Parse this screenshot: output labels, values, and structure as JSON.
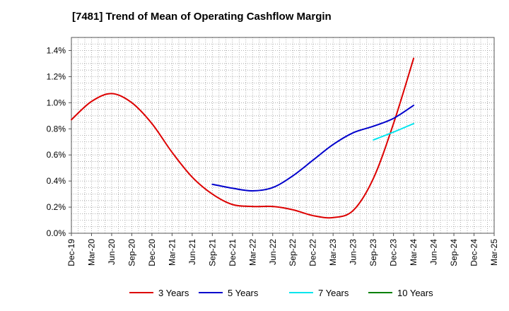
{
  "chart_data": {
    "type": "line",
    "title": "[7481]  Trend of Mean of Operating Cashflow Margin",
    "xlabel": "",
    "ylabel": "",
    "x_ticks": [
      "Dec-19",
      "Mar-20",
      "Jun-20",
      "Sep-20",
      "Dec-20",
      "Mar-21",
      "Jun-21",
      "Sep-21",
      "Dec-21",
      "Mar-22",
      "Jun-22",
      "Sep-22",
      "Dec-22",
      "Mar-23",
      "Jun-23",
      "Sep-23",
      "Dec-23",
      "Mar-24",
      "Jun-24",
      "Sep-24",
      "Dec-24",
      "Mar-25"
    ],
    "y_ticks": [
      "0.0%",
      "0.2%",
      "0.4%",
      "0.6%",
      "0.8%",
      "1.0%",
      "1.2%",
      "1.4%"
    ],
    "ylim": [
      0,
      1.5
    ],
    "grid": true,
    "legend_position": "bottom",
    "series": [
      {
        "name": "3 Years",
        "color": "#dd0000",
        "x": [
          "Dec-19",
          "Mar-20",
          "Jun-20",
          "Sep-20",
          "Dec-20",
          "Mar-21",
          "Jun-21",
          "Sep-21",
          "Dec-21",
          "Mar-22",
          "Jun-22",
          "Sep-22",
          "Dec-22",
          "Mar-23",
          "Jun-23",
          "Sep-23",
          "Dec-23",
          "Mar-24"
        ],
        "values": [
          0.87,
          1.01,
          1.07,
          1.0,
          0.84,
          0.62,
          0.43,
          0.3,
          0.22,
          0.205,
          0.205,
          0.18,
          0.135,
          0.12,
          0.175,
          0.42,
          0.84,
          1.34
        ]
      },
      {
        "name": "5 Years",
        "color": "#0000cc",
        "x": [
          "Sep-21",
          "Dec-21",
          "Mar-22",
          "Jun-22",
          "Sep-22",
          "Dec-22",
          "Mar-23",
          "Jun-23",
          "Sep-23",
          "Dec-23",
          "Mar-24"
        ],
        "values": [
          0.375,
          0.345,
          0.325,
          0.35,
          0.44,
          0.56,
          0.68,
          0.77,
          0.82,
          0.88,
          0.98
        ]
      },
      {
        "name": "7 Years",
        "color": "#00e5ee",
        "x": [
          "Sep-23",
          "Dec-23",
          "Mar-24"
        ],
        "values": [
          0.715,
          0.775,
          0.84
        ]
      },
      {
        "name": "10 Years",
        "color": "#008000",
        "x": [],
        "values": []
      }
    ]
  }
}
